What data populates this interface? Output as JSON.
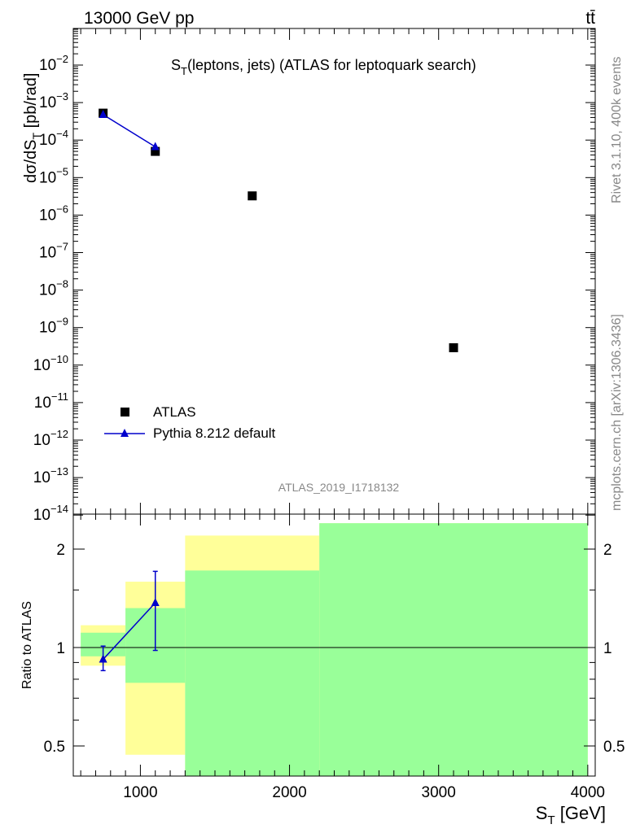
{
  "header": {
    "energy_label": "13000 GeV pp",
    "process_label": "tt̄",
    "rivet_label": "Rivet 3.1.10,  400k events",
    "mcplots_label": "mcplots.cern.ch [arXiv:1306.3436]",
    "analysis_id": "ATLAS_2019_I1718132"
  },
  "chart_data": [
    {
      "type": "scatter",
      "panel": "main",
      "title": "S_T(leptons, jets) (ATLAS for leptoquark search)",
      "ylabel": "dσ/dS_T [pb/rad]",
      "yscale": "log",
      "ylim": [
        1e-14,
        0.1
      ],
      "xlim": [
        550,
        4050
      ],
      "y_tick_exponents": [
        -2,
        -3,
        -4,
        -5,
        -6,
        -7,
        -8,
        -9,
        -10,
        -11,
        -12,
        -13,
        -14
      ],
      "legend_position": "bottom-left",
      "series": [
        {
          "name": "ATLAS",
          "marker": "square",
          "color": "#000000",
          "x": [
            750,
            1100,
            1750,
            3100
          ],
          "y": [
            0.00045,
            4.3e-05,
            2.8e-06,
            2.5e-10
          ]
        },
        {
          "name": "Pythia 8.212 default",
          "marker": "triangle",
          "color": "#0000cc",
          "x": [
            750,
            1100
          ],
          "y": [
            0.00041,
            5.7e-05
          ],
          "y_err_low": [
            0.0004,
            4.8e-05
          ],
          "y_err_high": [
            0.00043,
            6.6e-05
          ]
        }
      ]
    },
    {
      "type": "line",
      "panel": "ratio",
      "ylabel": "Ratio to ATLAS",
      "xlabel": "S_T [GeV]",
      "yscale": "log",
      "ylim": [
        0.4,
        2.4
      ],
      "xlim": [
        550,
        4050
      ],
      "y_ticks": [
        "0.5",
        "1",
        "2"
      ],
      "x_ticks": [
        "1000",
        "2000",
        "3000",
        "4000"
      ],
      "reference_line": 1,
      "uncertainty_bands": [
        {
          "x_low": 600,
          "x_high": 900,
          "green": [
            0.94,
            1.11
          ],
          "yellow": [
            0.88,
            1.17
          ]
        },
        {
          "x_low": 900,
          "x_high": 1300,
          "green": [
            0.78,
            1.32
          ],
          "yellow": [
            0.47,
            1.59
          ]
        },
        {
          "x_low": 1300,
          "x_high": 2200,
          "green": [
            0.4,
            1.72
          ],
          "yellow": [
            0.4,
            2.2
          ]
        },
        {
          "x_low": 2200,
          "x_high": 4000,
          "green": [
            0.4,
            2.4
          ],
          "yellow": [
            0.4,
            2.4
          ]
        }
      ],
      "series": [
        {
          "name": "Pythia 8.212 default",
          "color": "#0000cc",
          "x": [
            750,
            1100
          ],
          "y": [
            0.92,
            1.37
          ],
          "y_err_low": [
            0.85,
            0.98
          ],
          "y_err_high": [
            1.01,
            1.71
          ]
        }
      ]
    }
  ]
}
